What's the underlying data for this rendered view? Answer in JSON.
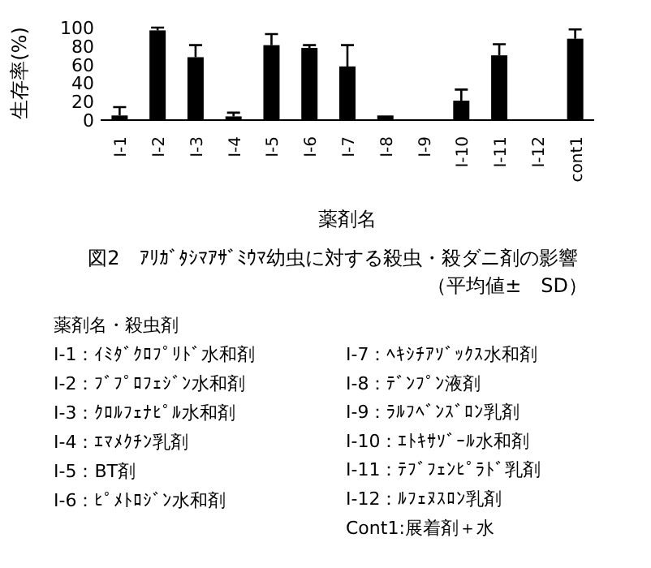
{
  "chart_data": {
    "type": "bar",
    "title": "図2　ｱﾘｶﾞﾀｼﾏｱｻﾞﾐｳﾏ幼虫に対する殺虫・殺ダニ剤の影響",
    "subtitle": "（平均値±　SD）",
    "xlabel": "薬剤名",
    "ylabel": "生存率(%)",
    "categories": [
      "I-1",
      "I-2",
      "I-3",
      "I-4",
      "I-5",
      "I-6",
      "I-7",
      "I-8",
      "I-9",
      "I-10",
      "I-11",
      "I-12",
      "cont1"
    ],
    "values": [
      5,
      97,
      68,
      4,
      81,
      78,
      58,
      5,
      0,
      21,
      70,
      0,
      88
    ],
    "errors": [
      [
        5,
        14
      ],
      [
        97,
        100
      ],
      [
        68,
        81
      ],
      [
        4,
        8
      ],
      [
        81,
        93
      ],
      [
        78,
        81
      ],
      [
        58,
        81
      ],
      null,
      null,
      [
        21,
        33
      ],
      [
        70,
        82
      ],
      null,
      [
        88,
        98
      ]
    ],
    "color": "#000000",
    "ylim": [
      0,
      100
    ],
    "yticks": [
      0,
      20,
      40,
      60,
      80,
      100
    ],
    "annotations": [
      "薬剤名・殺虫剤",
      "I-1：ｲﾐﾀﾞｸﾛﾌﾟﾘﾄﾞ水和剤",
      "I-2：ﾌﾞﾌﾟﾛﾌｪｼﾞﾝ水和剤",
      "I-3：ｸﾛﾙﾌｪﾅﾋﾟﾙ水和剤",
      "I-4：ｴﾏﾒｸﾁﾝ乳剤",
      "I-5：BT剤",
      "I-6：ﾋﾟﾒﾄﾛｼﾞﾝ水和剤",
      "I-7：ﾍｷｼﾁｱｿﾞｯｸｽ水和剤",
      "I-8：ﾃﾞﾝﾌﾟﾝ液剤",
      "I-9：ﾗﾙﾌﾍﾞﾝｽﾞﾛﾝ乳剤",
      "I-10：ｴﾄｷｻｿﾞｰﾙ水和剤",
      "I-11：ﾃﾌﾞﾌｪﾝﾋﾟﾗﾄﾞ乳剤",
      "I-12：ﾙﾌｪﾇｽﾛﾝ乳剤",
      "Cont1:展着剤＋水"
    ]
  }
}
